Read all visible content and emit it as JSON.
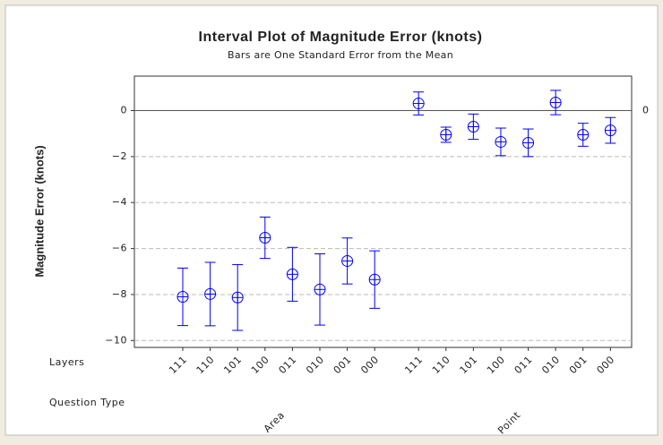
{
  "chart_data": {
    "type": "interval",
    "title": "Interval Plot of Magnitude Error (knots)",
    "subtitle": "Bars are One Standard Error from the Mean",
    "y_label": "Magnitude Error (knots)",
    "x_row_labels": [
      "Layers",
      "Question Type"
    ],
    "color": "#0000ff",
    "series": [
      {
        "name": "Area",
        "categories": [
          "111",
          "110",
          "101",
          "100",
          "011",
          "010",
          "001",
          "000"
        ],
        "values": [
          -8.1,
          -7.98,
          -8.13,
          -5.53,
          -7.12,
          -7.78,
          -6.54,
          -7.35
        ],
        "errors": [
          1.25,
          1.38,
          1.43,
          0.9,
          1.17,
          1.55,
          1.0,
          1.25
        ]
      },
      {
        "name": "Point",
        "categories": [
          "111",
          "110",
          "101",
          "100",
          "011",
          "010",
          "001",
          "000"
        ],
        "values": [
          0.31,
          -1.05,
          -0.7,
          -1.36,
          -1.4,
          0.35,
          -1.05,
          -0.86
        ],
        "errors": [
          0.5,
          0.33,
          0.55,
          0.6,
          0.6,
          0.53,
          0.5,
          0.56
        ]
      }
    ],
    "ylim": [
      -10.3,
      1.5
    ],
    "yticks": [
      {
        "value": -10,
        "label": "−10"
      },
      {
        "value": -8,
        "label": "−8"
      },
      {
        "value": -6,
        "label": "−6"
      },
      {
        "value": -4,
        "label": "−4"
      },
      {
        "value": -2,
        "label": "−2"
      },
      0
    ],
    "reference_line": 0,
    "grid": true
  }
}
